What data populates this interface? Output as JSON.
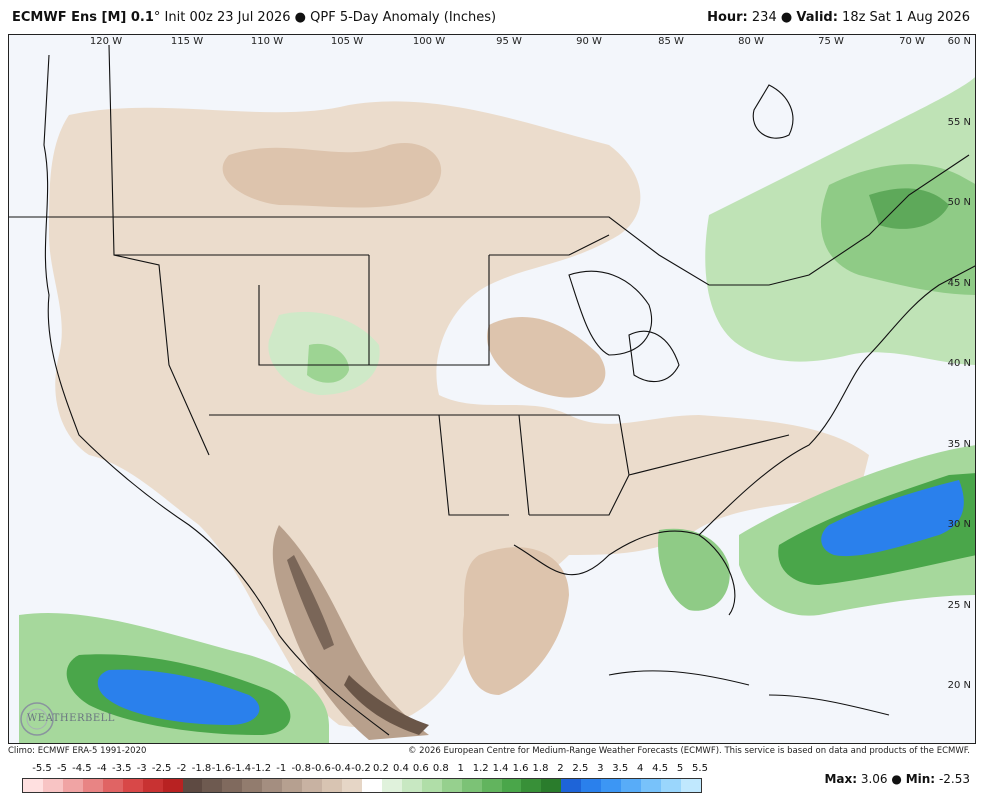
{
  "header": {
    "model": "ECMWF Ens [M] 0.1",
    "degree": "°",
    "init": "Init 00z 23 Jul 2026",
    "bullet": "●",
    "product": "QPF 5-Day Anomaly (Inches)",
    "hour_label": "Hour:",
    "hour_value": "234",
    "valid_label": "Valid:",
    "valid_value": "18z Sat 1 Aug 2026"
  },
  "map": {
    "longitude_labels": [
      "120 W",
      "115 W",
      "110 W",
      "105 W",
      "100 W",
      "95 W",
      "90 W",
      "85 W",
      "80 W",
      "75 W",
      "70 W"
    ],
    "latitude_labels": [
      "60 N",
      "55 N",
      "50 N",
      "45 N",
      "40 N",
      "35 N",
      "30 N",
      "25 N",
      "20 N"
    ],
    "max_anomaly_in": 3.06,
    "min_anomaly_in": -2.53
  },
  "logo": {
    "text": "WEATHERBELL"
  },
  "footer": {
    "climo": "Climo: ECMWF ERA-5 1991-2020",
    "copyright": "© 2026 European Centre for Medium-Range Weather Forecasts (ECMWF). This service is based on data and products of the ECMWF."
  },
  "legend": {
    "ticks": [
      "-5.5",
      "-5",
      "-4.5",
      "-4",
      "-3.5",
      "-3",
      "-2.5",
      "-2",
      "-1.8",
      "-1.6",
      "-1.4",
      "-1.2",
      "-1",
      "-0.8",
      "-0.6",
      "-0.4",
      "-0.2",
      "0.2",
      "0.4",
      "0.6",
      "0.8",
      "1",
      "1.2",
      "1.4",
      "1.6",
      "1.8",
      "2",
      "2.5",
      "3",
      "3.5",
      "4",
      "4.5",
      "5",
      "5.5"
    ],
    "colors": [
      "#ffe0e0",
      "#f8c4c4",
      "#f0a4a4",
      "#e88484",
      "#e06464",
      "#d84848",
      "#c83232",
      "#b82222",
      "#5e4a42",
      "#6e5a50",
      "#806a5e",
      "#927c6e",
      "#a48e80",
      "#b6a090",
      "#c8b2a2",
      "#d8c4b2",
      "#e6d6c6",
      "#ffffff",
      "#e0f2dc",
      "#c8e8c2",
      "#b0dea8",
      "#96d08e",
      "#7cc276",
      "#62b45e",
      "#4aa64a",
      "#389038",
      "#2a7c2c",
      "#1e64d8",
      "#2a80ec",
      "#3c96f4",
      "#58acf8",
      "#78c2fa",
      "#9ad6fc",
      "#c0e8fe"
    ]
  },
  "maxmin": {
    "max_label": "Max:",
    "max_value": "3.06",
    "min_label": "Min:",
    "min_value": "-2.53"
  }
}
